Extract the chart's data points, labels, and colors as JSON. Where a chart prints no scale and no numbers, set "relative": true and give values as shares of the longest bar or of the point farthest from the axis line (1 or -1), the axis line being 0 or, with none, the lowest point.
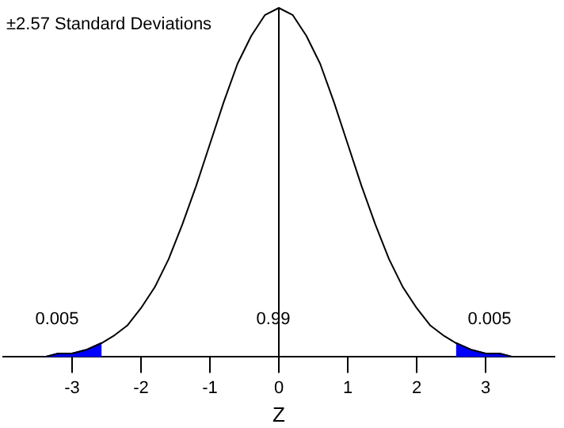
{
  "chart_data": {
    "type": "line",
    "title": "±2.57 Standard Deviations",
    "xlabel": "Z",
    "relative": true,
    "xlim": [
      -4,
      4
    ],
    "xticks": [
      -3,
      -2,
      -1,
      0,
      1,
      2,
      3
    ],
    "legend": false,
    "grid": false,
    "marker": "none",
    "series": [
      {
        "color": "#000000",
        "x": [
          -3.4,
          -3.2,
          -3,
          -2.8,
          -2.57,
          -2.4,
          -2.2,
          -2,
          -1.8,
          -1.6,
          -1.4,
          -1.2,
          -1,
          -0.8,
          -0.6,
          -0.4,
          -0.2,
          0,
          0.2,
          0.4,
          0.6,
          0.8,
          1,
          1.2,
          1.4,
          1.6,
          1.8,
          2,
          2.2,
          2.4,
          2.57,
          2.8,
          3,
          3.2,
          3.4
        ],
        "values": [
          0,
          0.01,
          0.01,
          0.02,
          0.04,
          0.06,
          0.09,
          0.14,
          0.2,
          0.28,
          0.38,
          0.49,
          0.61,
          0.73,
          0.84,
          0.92,
          0.98,
          1,
          0.98,
          0.92,
          0.84,
          0.73,
          0.61,
          0.49,
          0.38,
          0.28,
          0.2,
          0.14,
          0.09,
          0.06,
          0.04,
          0.02,
          0.01,
          0.01,
          0
        ]
      },
      {
        "type": "area",
        "color": "#0000ff",
        "x": [
          -3.4,
          -3.2,
          -3,
          -2.8,
          -2.57
        ],
        "values": [
          0,
          0.01,
          0.01,
          0.02,
          0.04
        ]
      },
      {
        "type": "area",
        "color": "#0000ff",
        "x": [
          2.57,
          2.8,
          3,
          3.2,
          3.4
        ],
        "values": [
          0.04,
          0.02,
          0.01,
          0.01,
          0
        ]
      }
    ],
    "ref_lines": [
      {
        "axis": "x",
        "value": 0,
        "color": "#000000"
      }
    ],
    "annotations": [
      "0.005",
      "0.99",
      "0.005"
    ]
  }
}
